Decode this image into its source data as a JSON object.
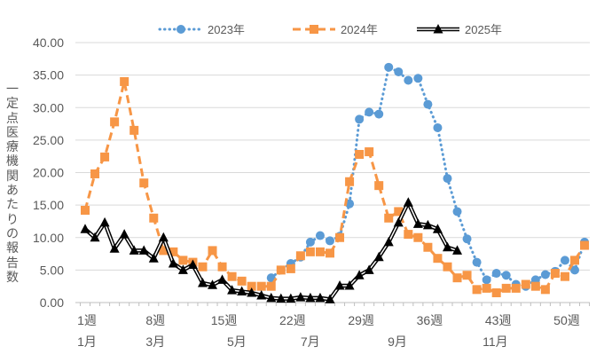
{
  "chart_data": {
    "type": "line",
    "title": "",
    "ylabel": "一定点医療機関あたりの報告数",
    "xlabel": "",
    "ylim": [
      0,
      40
    ],
    "yticks": [
      "0.00",
      "5.00",
      "10.00",
      "15.00",
      "20.00",
      "25.00",
      "30.00",
      "35.00",
      "40.00"
    ],
    "xlim": [
      1,
      52
    ],
    "week_ticks": [
      {
        "week": 1,
        "label": "1週"
      },
      {
        "week": 8,
        "label": "8週"
      },
      {
        "week": 15,
        "label": "15週"
      },
      {
        "week": 22,
        "label": "22週"
      },
      {
        "week": 29,
        "label": "29週"
      },
      {
        "week": 36,
        "label": "36週"
      },
      {
        "week": 43,
        "label": "43週"
      },
      {
        "week": 50,
        "label": "50週"
      }
    ],
    "month_ticks": [
      {
        "week": 1,
        "label": "1月"
      },
      {
        "week": 8,
        "label": "3月"
      },
      {
        "week": 16.3,
        "label": "5月"
      },
      {
        "week": 23.8,
        "label": "7月"
      },
      {
        "week": 32.7,
        "label": "9月"
      },
      {
        "week": 42.7,
        "label": "11月"
      }
    ],
    "grid": true,
    "legend_position": "top",
    "series": [
      {
        "name": "2023年",
        "color": "#5B9BD5",
        "style": "dotted",
        "marker": "circle",
        "start_week": 20,
        "values": [
          3.8,
          5.0,
          6.0,
          7.0,
          9.3,
          10.3,
          9.5,
          10.2,
          15.2,
          28.2,
          29.3,
          29.0,
          36.2,
          35.5,
          34.2,
          34.5,
          30.5,
          26.9,
          19.1,
          14.0,
          9.8,
          6.2,
          3.5,
          4.5,
          4.2,
          2.8,
          2.5,
          3.5,
          4.3,
          4.8,
          6.5,
          5.0,
          9.3
        ]
      },
      {
        "name": "2024年",
        "color": "#F79646",
        "style": "dashed",
        "marker": "square",
        "start_week": 1,
        "values": [
          14.2,
          19.8,
          22.4,
          27.8,
          34.0,
          26.5,
          18.4,
          13.0,
          8.0,
          7.8,
          6.5,
          6.2,
          5.5,
          8.0,
          5.5,
          4.0,
          3.3,
          2.5,
          2.5,
          2.5,
          5.0,
          5.2,
          7.2,
          7.8,
          7.8,
          7.6,
          10.0,
          18.6,
          22.8,
          23.2,
          18.0,
          13.0,
          14.0,
          10.5,
          10.0,
          8.5,
          6.8,
          5.5,
          3.8,
          4.2,
          2.0,
          2.2,
          1.5,
          2.2,
          2.2,
          2.8,
          2.5,
          2.0,
          4.5,
          4.0,
          6.5,
          8.8
        ]
      },
      {
        "name": "2025年",
        "color": "#000000",
        "style": "double",
        "marker": "triangle",
        "start_week": 1,
        "values": [
          11.3,
          10.0,
          12.3,
          8.3,
          10.5,
          8.0,
          8.0,
          6.8,
          10.0,
          6.0,
          5.0,
          5.8,
          3.0,
          2.7,
          3.5,
          1.9,
          1.7,
          1.5,
          1.1,
          0.7,
          0.6,
          0.6,
          0.8,
          0.7,
          0.7,
          0.5,
          2.6,
          2.6,
          4.2,
          5.0,
          7.0,
          9.3,
          12.3,
          15.4,
          12.1,
          11.9,
          11.3,
          8.5,
          8.0
        ]
      }
    ]
  }
}
